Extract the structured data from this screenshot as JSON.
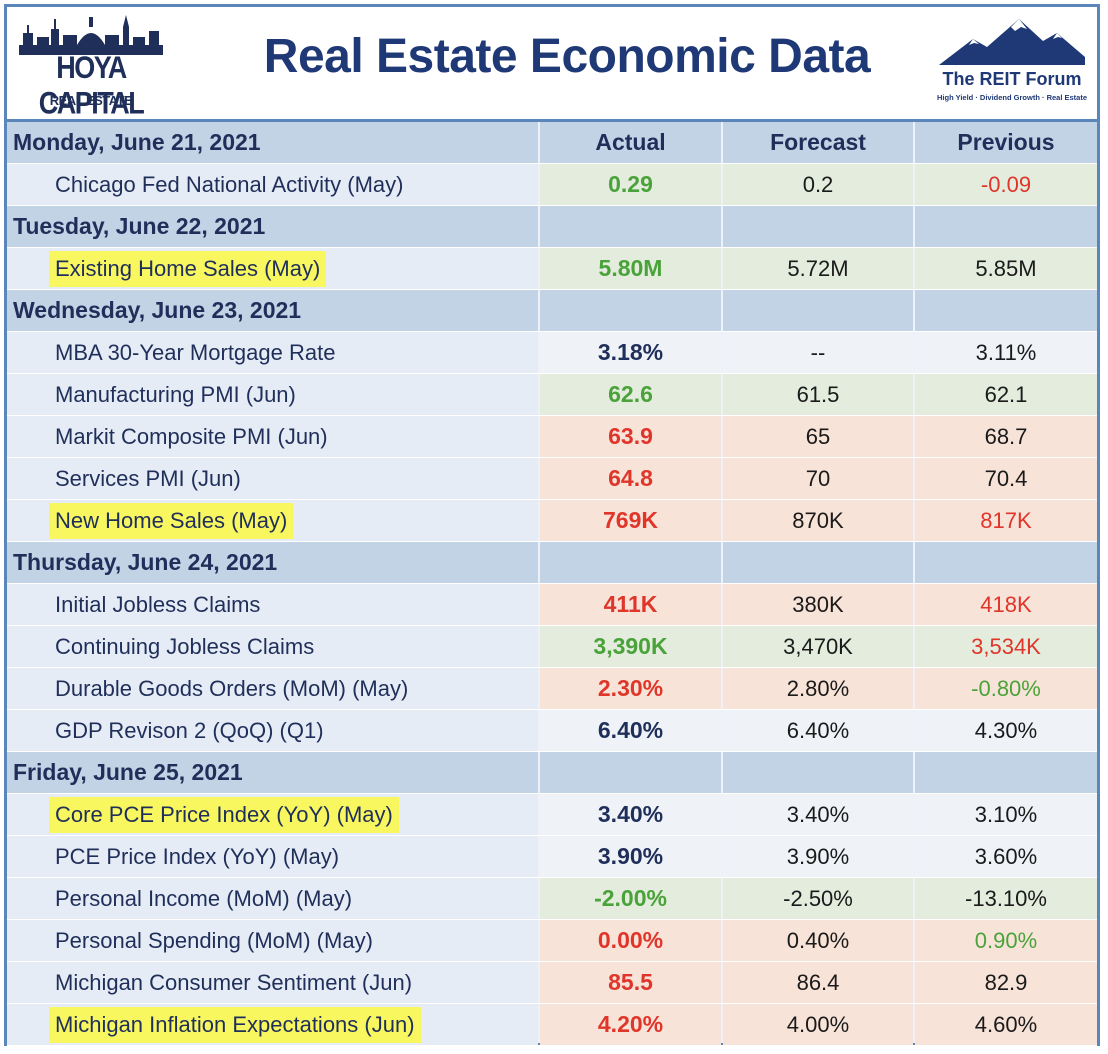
{
  "header": {
    "logo_left_name": "HOYA CAPITAL",
    "logo_left_sub": "REAL ESTATE",
    "title": "Real Estate Economic Data",
    "logo_right_name": "The REIT Forum",
    "logo_right_sub": "High Yield · Dividend Growth · Real Estate"
  },
  "columns": {
    "actual": "Actual",
    "forecast": "Forecast",
    "previous": "Previous"
  },
  "colors": {
    "accent": "#1f3876",
    "positive": "#4aa33a",
    "negative": "#e0352a",
    "highlight": "#f8f760",
    "date_row_bg": "#c3d3e6"
  },
  "days": [
    {
      "date": "Monday, June 21, 2021",
      "show_headers": true,
      "rows": [
        {
          "label": "Chicago Fed National Activity (May)",
          "highlight": false,
          "bg": "green",
          "actual": "0.29",
          "actual_color": "green",
          "forecast": "0.2",
          "previous": "-0.09",
          "previous_color": "red"
        }
      ]
    },
    {
      "date": "Tuesday, June 22, 2021",
      "rows": [
        {
          "label": "Existing Home Sales (May)",
          "highlight": true,
          "bg": "green",
          "actual": "5.80M",
          "actual_color": "green",
          "forecast": "5.72M",
          "previous": "5.85M",
          "previous_color": "dark"
        }
      ]
    },
    {
      "date": "Wednesday, June 23, 2021",
      "rows": [
        {
          "label": "MBA 30-Year Mortgage Rate",
          "highlight": false,
          "bg": "white",
          "actual": "3.18%",
          "actual_color": "navy",
          "forecast": "--",
          "previous": "3.11%",
          "previous_color": "dark"
        },
        {
          "label": "Manufacturing PMI (Jun)",
          "highlight": false,
          "bg": "green",
          "actual": "62.6",
          "actual_color": "green",
          "forecast": "61.5",
          "previous": "62.1",
          "previous_color": "dark"
        },
        {
          "label": "Markit Composite PMI (Jun)",
          "highlight": false,
          "bg": "red",
          "actual": "63.9",
          "actual_color": "red",
          "forecast": "65",
          "previous": "68.7",
          "previous_color": "dark"
        },
        {
          "label": "Services PMI (Jun)",
          "highlight": false,
          "bg": "red",
          "actual": "64.8",
          "actual_color": "red",
          "forecast": "70",
          "previous": "70.4",
          "previous_color": "dark"
        },
        {
          "label": "New Home Sales (May)",
          "highlight": true,
          "bg": "red",
          "actual": "769K",
          "actual_color": "red",
          "forecast": "870K",
          "previous": "817K",
          "previous_color": "red"
        }
      ]
    },
    {
      "date": "Thursday, June 24, 2021",
      "rows": [
        {
          "label": "Initial Jobless Claims",
          "highlight": false,
          "bg": "red",
          "actual": "411K",
          "actual_color": "red",
          "forecast": "380K",
          "previous": "418K",
          "previous_color": "red"
        },
        {
          "label": "Continuing Jobless Claims",
          "highlight": false,
          "bg": "green",
          "actual": "3,390K",
          "actual_color": "green",
          "forecast": "3,470K",
          "previous": "3,534K",
          "previous_color": "red"
        },
        {
          "label": "Durable Goods Orders (MoM) (May)",
          "highlight": false,
          "bg": "red",
          "actual": "2.30%",
          "actual_color": "red",
          "forecast": "2.80%",
          "previous": "-0.80%",
          "previous_color": "green"
        },
        {
          "label": "GDP Revison 2 (QoQ) (Q1)",
          "highlight": false,
          "bg": "white",
          "actual": "6.40%",
          "actual_color": "navy",
          "forecast": "6.40%",
          "previous": "4.30%",
          "previous_color": "dark"
        }
      ]
    },
    {
      "date": "Friday, June 25, 2021",
      "rows": [
        {
          "label": "Core PCE Price Index (YoY) (May)",
          "highlight": true,
          "bg": "white",
          "actual": "3.40%",
          "actual_color": "navy",
          "forecast": "3.40%",
          "previous": "3.10%",
          "previous_color": "dark"
        },
        {
          "label": "PCE Price Index (YoY) (May)",
          "highlight": false,
          "bg": "white",
          "actual": "3.90%",
          "actual_color": "navy",
          "forecast": "3.90%",
          "previous": "3.60%",
          "previous_color": "dark"
        },
        {
          "label": "Personal Income (MoM) (May)",
          "highlight": false,
          "bg": "green",
          "actual": "-2.00%",
          "actual_color": "green",
          "forecast": "-2.50%",
          "previous": "-13.10%",
          "previous_color": "dark"
        },
        {
          "label": "Personal Spending (MoM) (May)",
          "highlight": false,
          "bg": "red",
          "actual": "0.00%",
          "actual_color": "red",
          "forecast": "0.40%",
          "previous": "0.90%",
          "previous_color": "green"
        },
        {
          "label": "Michigan Consumer Sentiment (Jun)",
          "highlight": false,
          "bg": "red",
          "actual": "85.5",
          "actual_color": "red",
          "forecast": "86.4",
          "previous": "82.9",
          "previous_color": "dark"
        },
        {
          "label": "Michigan Inflation Expectations (Jun)",
          "highlight": true,
          "bg": "red",
          "actual": "4.20%",
          "actual_color": "red",
          "forecast": "4.00%",
          "previous": "4.60%",
          "previous_color": "dark"
        }
      ]
    }
  ]
}
